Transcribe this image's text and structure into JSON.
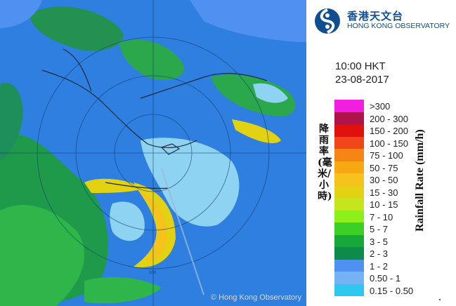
{
  "header": {
    "org_name_zh": "香港天文台",
    "org_name_en": "HONG KONG OBSERVATORY",
    "time": "10:00 HKT",
    "date": "23-08-2017"
  },
  "map": {
    "copyright": "© Hong Kong Observatory",
    "range_ring_labels": [
      "100"
    ]
  },
  "legend": {
    "title_zh": "降雨率(毫米/小時)",
    "title_en": "Rainfall Rate (mm/h)",
    "items": [
      {
        "label": ">300",
        "color": "#f21fe0"
      },
      {
        "label": "200 - 300",
        "color": "#b0124a"
      },
      {
        "label": "150 - 200",
        "color": "#e0100d"
      },
      {
        "label": "100 - 150",
        "color": "#f1461a"
      },
      {
        "label": "75 - 100",
        "color": "#f58514"
      },
      {
        "label": "50 - 75",
        "color": "#f7a812"
      },
      {
        "label": "30 - 50",
        "color": "#f5c31b"
      },
      {
        "label": "15 - 30",
        "color": "#e3d212"
      },
      {
        "label": "10 - 15",
        "color": "#c6e51d"
      },
      {
        "label": "7 - 10",
        "color": "#8ef01a"
      },
      {
        "label": "5 - 7",
        "color": "#3ccf28"
      },
      {
        "label": "3 - 5",
        "color": "#17a83a"
      },
      {
        "label": "2 - 3",
        "color": "#0c8c48"
      },
      {
        "label": "1 - 2",
        "color": "#4f91f0"
      },
      {
        "label": "0.50 - 1",
        "color": "#74b2f5"
      },
      {
        "label": "0.15 - 0.50",
        "color": "#2ec7f2"
      }
    ]
  }
}
